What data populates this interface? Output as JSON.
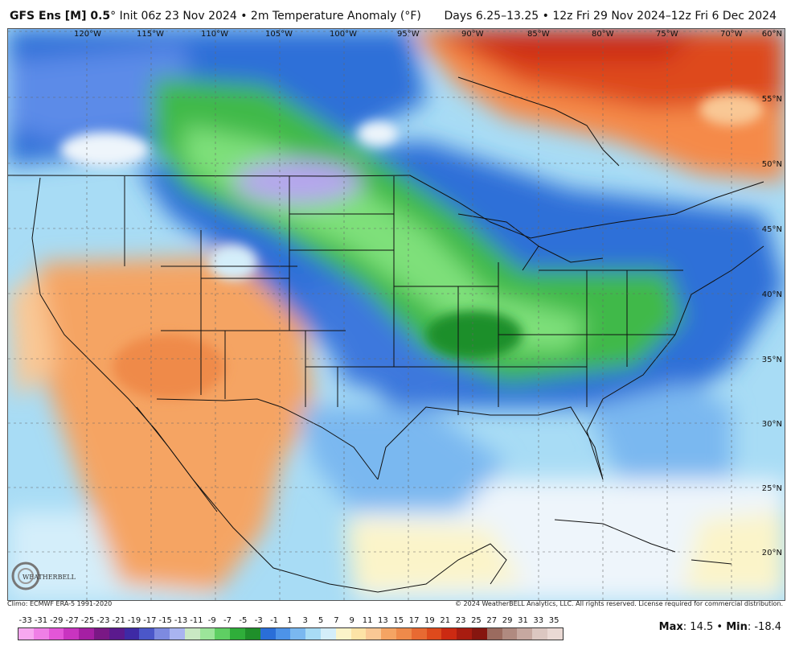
{
  "header": {
    "model": "GFS Ens [M] 0.5",
    "degree_mark": "°",
    "init": "Init 06z 23 Nov 2024",
    "bullet": "•",
    "variable": "2m Temperature Anomaly (°F)",
    "valid": "Days 6.25–13.25 • 12z Fri 29 Nov 2024–12z Fri 6 Dec 2024"
  },
  "map": {
    "lon_labels": [
      "120°W",
      "115°W",
      "110°W",
      "105°W",
      "100°W",
      "95°W",
      "90°W",
      "85°W",
      "80°W",
      "75°W",
      "70°W"
    ],
    "lat_labels": [
      "60°N",
      "55°N",
      "50°N",
      "45°N",
      "40°N",
      "35°N",
      "30°N",
      "25°N",
      "20°N"
    ],
    "colors": {
      "warm": "#f5a463",
      "warm_light": "#f9c895",
      "very_warm": "#e84a1c",
      "hot": "#cf2a12",
      "cold_green": "#3fb94a",
      "light_green": "#7ee07a",
      "blue": "#2f6fd8",
      "light_blue": "#7ab8f0",
      "cyan": "#a8dcf5",
      "pale": "#eef5fb",
      "purple": "#b6a6ee",
      "border": "#111111"
    }
  },
  "logo": {
    "text": "WEATHERBELL"
  },
  "credits": {
    "left": "Climo: ECMWF ERA-5 1991-2020",
    "right": "© 2024 WeatherBELL Analytics, LLC. All rights reserved. License required for commercial distribution."
  },
  "legend": {
    "labels": [
      "-33",
      "-31",
      "-29",
      "-27",
      "-25",
      "-23",
      "-21",
      "-19",
      "-17",
      "-15",
      "-13",
      "-11",
      "-9",
      "-7",
      "-5",
      "-3",
      "-1",
      "1",
      "3",
      "5",
      "7",
      "9",
      "11",
      "13",
      "15",
      "17",
      "19",
      "21",
      "23",
      "25",
      "27",
      "29",
      "31",
      "33",
      "35"
    ],
    "colors": [
      "#f7a8f0",
      "#ef7fe6",
      "#e356d8",
      "#c934c0",
      "#a51fa3",
      "#7a1885",
      "#5b1a8e",
      "#3e2aa5",
      "#4b57c9",
      "#7d8ae0",
      "#a9b4f0",
      "#c9e8c3",
      "#9ce59a",
      "#5fcf63",
      "#2fae3a",
      "#1f8f2a",
      "#2a6ed8",
      "#4d93e8",
      "#7ab8f0",
      "#a8dcf5",
      "#d4eefa",
      "#fbf4c9",
      "#fce3a6",
      "#f9c895",
      "#f5a463",
      "#ef8a4a",
      "#e86a32",
      "#de4a1c",
      "#cc2a12",
      "#a81c10",
      "#86160f",
      "#9b6b5f",
      "#b08a80",
      "#c6a8a0",
      "#dcc7c1",
      "#ead9d4"
    ]
  },
  "maxmin": {
    "max_label": "Max",
    "max_value": ": 14.5",
    "sep": " • ",
    "min_label": "Min",
    "min_value": ": -18.4"
  }
}
